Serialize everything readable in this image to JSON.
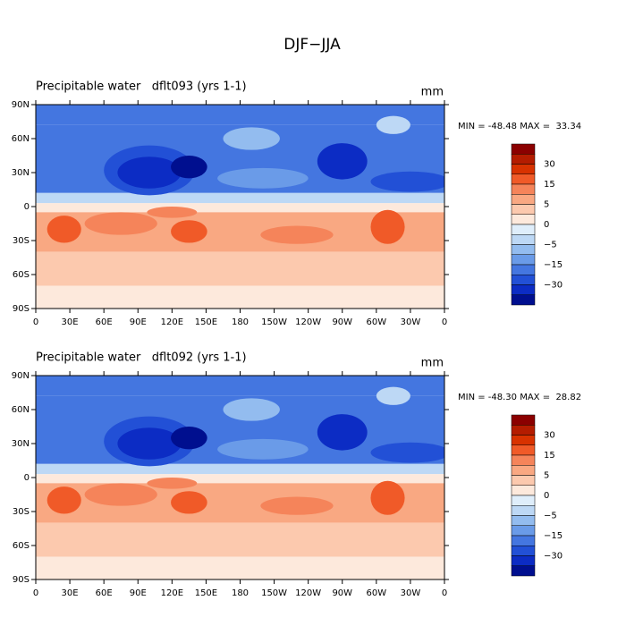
{
  "title": "DJF−JJA",
  "panels": [
    {
      "title": "Precipitable water   dflt093 (yrs 1-1)",
      "units": "mm",
      "stats": "MIN = -48.48 MAX =  33.34",
      "lat_labels": [
        "90N",
        "60N",
        "30N",
        "0",
        "30S",
        "60S",
        "90S"
      ],
      "lon_labels": [
        "0",
        "30E",
        "60E",
        "90E",
        "120E",
        "150E",
        "180",
        "150W",
        "120W",
        "90W",
        "60W",
        "30W",
        "0"
      ],
      "colorbar": {
        "colors": [
          "#8b0000",
          "#b41c00",
          "#d83200",
          "#f05a28",
          "#f5845a",
          "#f9a882",
          "#fcc9ae",
          "#fde9dc",
          "#dfeefb",
          "#bdd8f5",
          "#93bcef",
          "#6a9be8",
          "#4476e0",
          "#2250d6",
          "#0c2cc4",
          "#000f8f"
        ],
        "labels": [
          "30",
          "15",
          "5",
          "0",
          "−5",
          "−15",
          "−30"
        ]
      }
    },
    {
      "title": "Precipitable water   dflt092 (yrs 1-1)",
      "units": "mm",
      "stats": "MIN = -48.30 MAX =  28.82",
      "lat_labels": [
        "90N",
        "60N",
        "30N",
        "0",
        "30S",
        "60S",
        "90S"
      ],
      "lon_labels": [
        "0",
        "30E",
        "60E",
        "90E",
        "120E",
        "150E",
        "180",
        "150W",
        "120W",
        "90W",
        "60W",
        "30W",
        "0"
      ],
      "colorbar": {
        "colors": [
          "#8b0000",
          "#b41c00",
          "#d83200",
          "#f05a28",
          "#f5845a",
          "#f9a882",
          "#fcc9ae",
          "#fde9dc",
          "#dfeefb",
          "#bdd8f5",
          "#93bcef",
          "#6a9be8",
          "#4476e0",
          "#2250d6",
          "#0c2cc4",
          "#000f8f"
        ],
        "labels": [
          "30",
          "15",
          "5",
          "0",
          "−5",
          "−15",
          "−30"
        ]
      }
    }
  ]
}
